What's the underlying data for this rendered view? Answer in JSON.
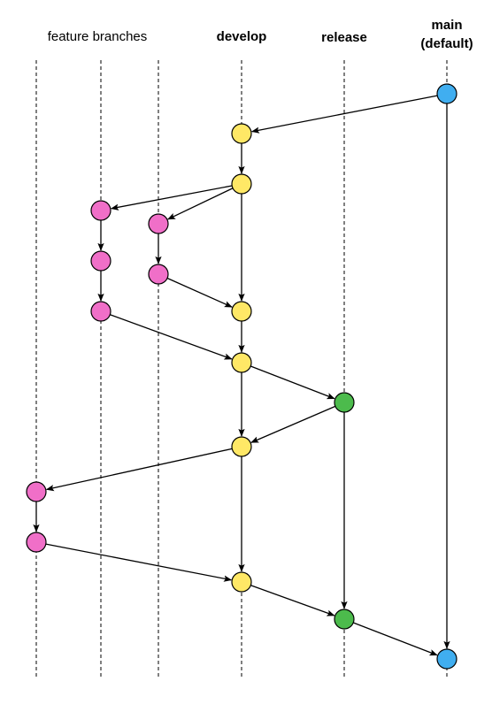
{
  "header": {
    "feature_branches": "feature branches",
    "develop": "develop",
    "release": "release",
    "main": "main",
    "main_note": "(default)"
  }
}
